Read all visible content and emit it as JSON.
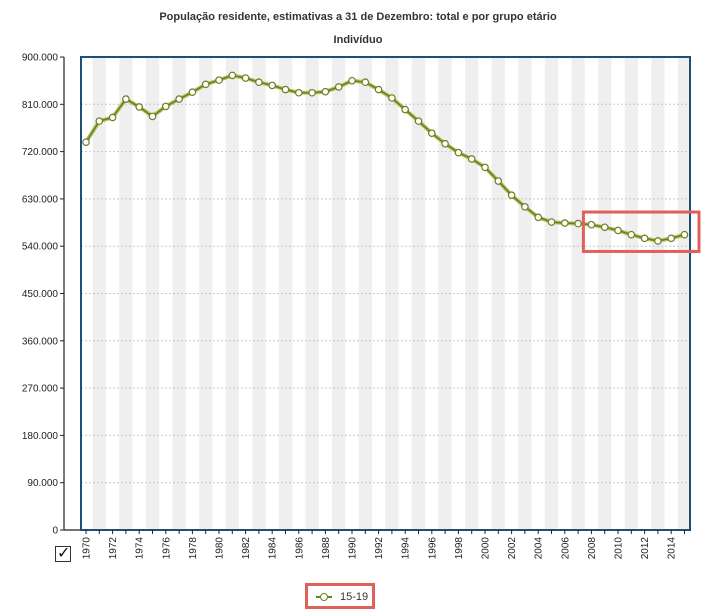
{
  "chart_data": {
    "type": "line",
    "title": "População residente, estimativas a 31 de Dezembro: total e por grupo etário",
    "subtitle": "Indivíduo",
    "x": [
      1970,
      1971,
      1972,
      1973,
      1974,
      1975,
      1976,
      1977,
      1978,
      1979,
      1980,
      1981,
      1982,
      1983,
      1984,
      1985,
      1986,
      1987,
      1988,
      1989,
      1990,
      1991,
      1992,
      1993,
      1994,
      1995,
      1996,
      1997,
      1998,
      1999,
      2000,
      2001,
      2002,
      2003,
      2004,
      2005,
      2006,
      2007,
      2008,
      2009,
      2010,
      2011,
      2012,
      2013,
      2014,
      2015
    ],
    "series": [
      {
        "name": "15-19",
        "color": "#6b7f1f",
        "values": [
          738000,
          778000,
          785000,
          820000,
          805000,
          787000,
          806000,
          820000,
          833000,
          848000,
          856000,
          865000,
          860000,
          852000,
          846000,
          838000,
          832000,
          832000,
          834000,
          843000,
          855000,
          852000,
          838000,
          822000,
          800000,
          778000,
          755000,
          735000,
          718000,
          706000,
          690000,
          664000,
          637000,
          615000,
          595000,
          586000,
          584000,
          583000,
          581000,
          576000,
          570000,
          562000,
          555000,
          550000,
          555000,
          562000
        ]
      }
    ],
    "y_ticks": [
      "900.000",
      "810.000",
      "720.000",
      "630.000",
      "540.000",
      "450.000",
      "360.000",
      "270.000",
      "180.000",
      "90.000",
      "0"
    ],
    "x_tick_labels": [
      "1970",
      "1972",
      "1974",
      "1976",
      "1978",
      "1980",
      "1982",
      "1984",
      "1986",
      "1988",
      "1990",
      "1992",
      "1994",
      "1996",
      "1998",
      "2000",
      "2002",
      "2004",
      "2006",
      "2008",
      "2010",
      "2012",
      "2014"
    ],
    "ylim": [
      0,
      900000
    ],
    "grid": true,
    "legend_placement": "bottom-center",
    "highlight_color": "#e0605c",
    "frame_color": "#1f4e79"
  },
  "legend": {
    "label": "15-19"
  },
  "checkbox": {
    "mark": "✓",
    "checked": true
  }
}
